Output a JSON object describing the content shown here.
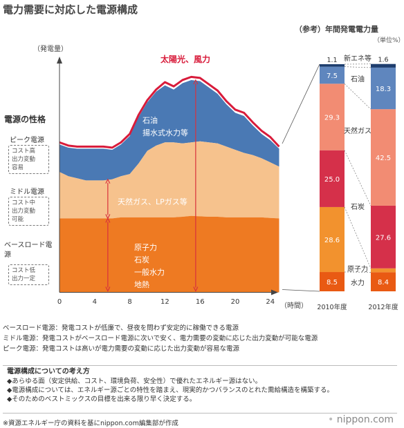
{
  "title": "電力需要に対応した電源構成",
  "ref_title": "（参考）年間発電電力量",
  "unit": "（単位%）",
  "nature_title": "電源の性格",
  "categories": [
    {
      "name": "ピーク電源",
      "note_lines": [
        "コスト高",
        "出力変動",
        "容易"
      ]
    },
    {
      "name": "ミドル電源",
      "note_lines": [
        "コスト中",
        "出力変動",
        "可能"
      ]
    },
    {
      "name": "ベースロード電源",
      "note_lines": [
        "コスト低",
        "出力一定"
      ]
    }
  ],
  "legend_lines": [
    "ベースロード電源：発電コストが低廉で、昼夜を問わず安定的に稼働できる電源",
    "ミドル電源：発電コストがベースロード電源に次いで安く、電力需要の変動に応じた出力変動が可能な電源",
    "ピーク電源：発電コストは高いが電力需要の変動に応じた出力変動が容易な電源"
  ],
  "policy": {
    "title": "電源構成についての考え方",
    "items": [
      "◆あらゆる面（安定供給、コスト、環境負荷、安全性）で優れたエネルギー源はない。",
      "◆電源構成については、エネルギー源ごとの特性を踏まえ、現実的かつバランスのとれた需給構造を構築する。",
      "◆そのためのベストミックスの目標を出来る限り早く決定する。"
    ]
  },
  "source": "※資源エネルギー庁の資料を基にnippon.com編集部が作成",
  "brand": "nippon.com",
  "colors": {
    "base": "#ee7a22",
    "middle": "#f6c28d",
    "peak": "#4a79b4",
    "renewable": "#d81b3a",
    "arrow": "#d8303c",
    "coal": "#d5304a",
    "gas": "#f28c73",
    "oil": "#5f86be",
    "newenergy": "#1e3e6e",
    "nuclear": "#f2922e",
    "hydro": "#e95a13"
  },
  "chart_data": [
    {
      "type": "area",
      "y_axis_label": "（発電量）",
      "x_axis_label": "（時間）",
      "x_ticks": [
        0,
        4,
        8,
        12,
        16,
        20,
        24
      ],
      "x": [
        0,
        1,
        2,
        3,
        4,
        5,
        6,
        7,
        8,
        9,
        10,
        11,
        12,
        13,
        14,
        15,
        16,
        17,
        18,
        19,
        20,
        21,
        22,
        23,
        24,
        25
      ],
      "series": [
        {
          "name": "原子力 石炭 一般水力 地熱",
          "key": "base",
          "values": [
            35,
            35,
            35,
            35,
            35,
            35,
            35,
            35.5,
            35.5,
            35.5,
            35.5,
            35.5,
            35.5,
            35.5,
            35.8,
            36.2,
            36,
            35.8,
            35.8,
            35.5,
            35.5,
            35.5,
            35.5,
            35.5,
            35.2,
            35
          ]
        },
        {
          "name": "天然ガス、LPガス等",
          "key": "middle",
          "values": [
            57,
            55,
            54,
            53,
            53,
            53,
            53.5,
            55,
            56,
            61,
            67,
            69.5,
            71,
            71,
            70.5,
            71,
            71.5,
            71,
            70.5,
            69,
            67.5,
            66,
            65,
            63.5,
            61.5,
            59.5
          ]
        },
        {
          "name": "石油 揚水式水力等",
          "key": "peak",
          "values": [
            70,
            68.5,
            68,
            68,
            68,
            68,
            67.5,
            70,
            74,
            83,
            90,
            95,
            98,
            96,
            99,
            100.5,
            100,
            97,
            94,
            89,
            85,
            83.5,
            79,
            75,
            72,
            68
          ]
        },
        {
          "name": "太陽光、風力",
          "key": "renewable",
          "values": [
            71,
            69.5,
            69,
            69,
            69,
            69,
            68.5,
            71,
            75,
            84,
            91,
            96,
            99.5,
            97.5,
            100.5,
            102,
            101.5,
            98.5,
            95.5,
            90.5,
            86.5,
            85,
            80.5,
            76.5,
            73.5,
            69
          ]
        }
      ],
      "labels": {
        "renewable": "太陽光、風力",
        "peak": [
          "石油",
          "揚水式水力等"
        ],
        "middle": "天然ガス、LPガス等",
        "base": [
          "原子力",
          "石炭",
          "一般水力",
          "地熱"
        ]
      }
    },
    {
      "type": "bar",
      "stacked": true,
      "categories": [
        "2010年度",
        "2012年度"
      ],
      "series": [
        {
          "name": "水力",
          "key": "hydro",
          "values": [
            8.5,
            8.4
          ]
        },
        {
          "name": "原子力",
          "key": "nuclear",
          "values": [
            28.6,
            1.7
          ]
        },
        {
          "name": "石炭",
          "key": "coal",
          "values": [
            25.0,
            27.6
          ]
        },
        {
          "name": "天然ガス",
          "key": "gas",
          "values": [
            29.3,
            42.5
          ]
        },
        {
          "name": "石油",
          "key": "oil",
          "values": [
            7.5,
            18.3
          ]
        },
        {
          "name": "新エネ等",
          "key": "newenergy",
          "values": [
            1.1,
            1.6
          ]
        }
      ],
      "value_labels": [
        [
          "8.5",
          "28.6",
          "25.0",
          "29.3",
          "7.5",
          "1.1"
        ],
        [
          "8.4",
          "1.7",
          "27.6",
          "42.5",
          "18.3",
          "1.6"
        ]
      ]
    }
  ]
}
